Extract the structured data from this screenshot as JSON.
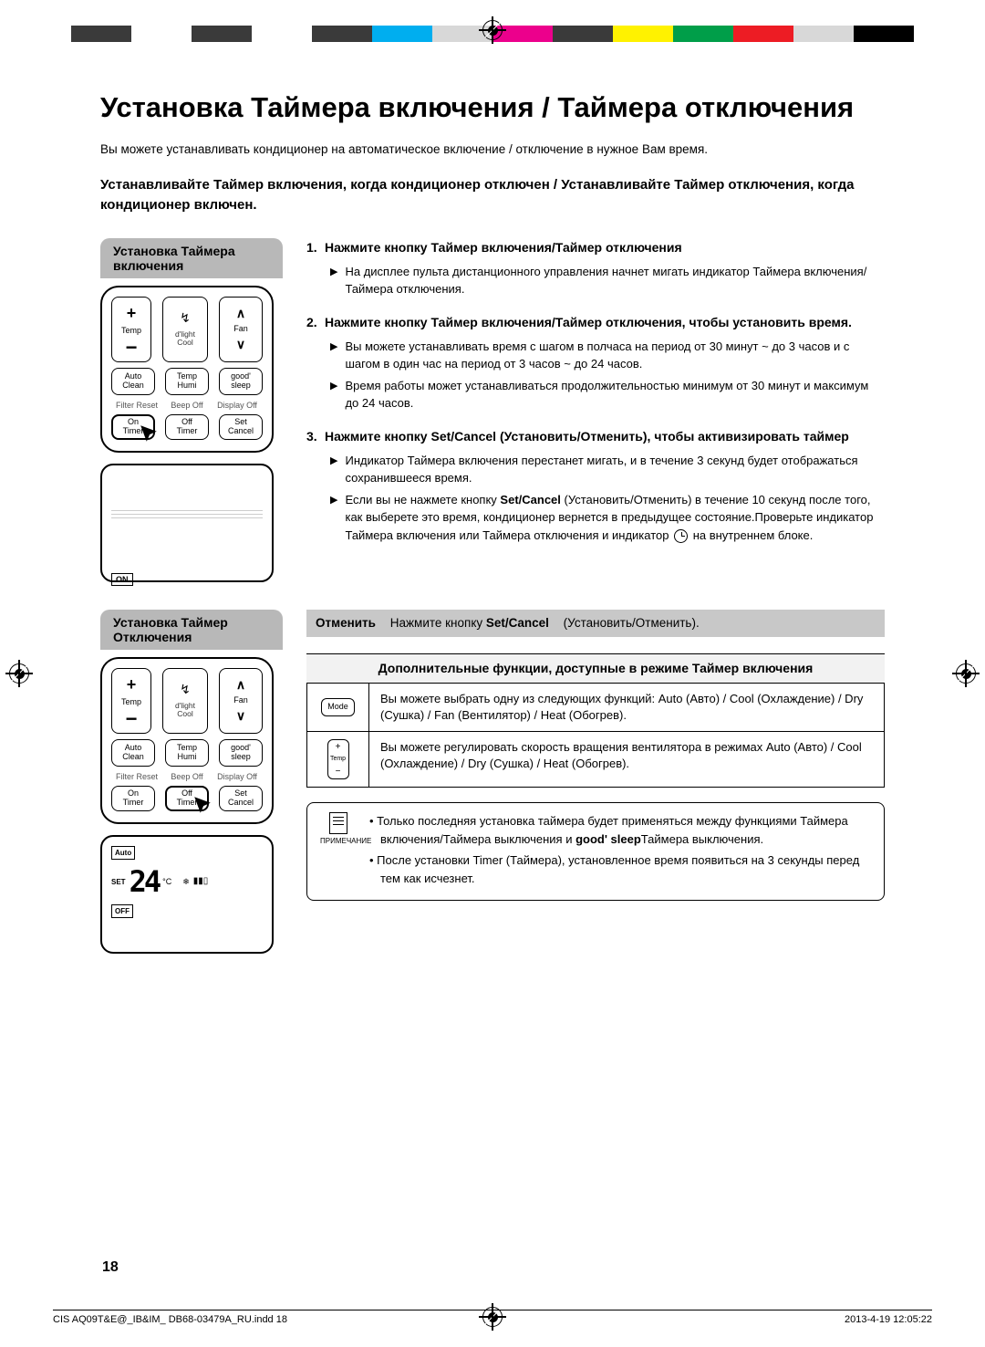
{
  "colorbar": [
    "#3a3a3a",
    "#ffffff",
    "#3a3a3a",
    "#ffffff",
    "#3a3a3a",
    "#00aeef",
    "#d8d8d8",
    "#ec008c",
    "#3a3a3a",
    "#fff200",
    "#009e49",
    "#ed1c24",
    "#d8d8d8",
    "#000000"
  ],
  "title": "Установка Таймера включения / Таймера отключения",
  "intro": "Вы можете устанавливать кондиционер на автоматическое включение / отключение в нужное Вам время.",
  "bold_intro": "Устанавливайте Таймер включения, когда кондиционер отключен / Устанавливайте Таймер отключения, когда кондиционер включен.",
  "section_on_label": "Установка Таймера включения",
  "section_off_label": "Установка Таймер Отключения",
  "remote": {
    "temp_label": "Temp",
    "mode_icon": "⤭",
    "dlight": "d'light",
    "cool": "Cool",
    "fan_label": "Fan",
    "auto_clean1": "Auto",
    "auto_clean2": "Clean",
    "temp_humi1": "Temp",
    "temp_humi2": "Humi",
    "good_sleep1": "good'",
    "good_sleep2": "sleep",
    "filter_reset": "Filter Reset",
    "beep_off": "Beep Off",
    "display_off": "Display Off",
    "on_timer1": "On",
    "on_timer2": "Timer",
    "off_timer1": "Off",
    "off_timer2": "Timer",
    "set_cancel1": "Set",
    "set_cancel2": "Cancel"
  },
  "display1_badge": "ON",
  "display2": {
    "auto": "Auto",
    "set": "SET",
    "temp": "24",
    "unit": "°C",
    "off": "OFF"
  },
  "steps": [
    {
      "num": "1.",
      "title": "Нажмите кнопку Таймер включения/Таймер отключения",
      "bullets": [
        "На дисплее пульта дистанционного управления начнет мигать индикатор Таймера включения/Таймера отключения."
      ]
    },
    {
      "num": "2.",
      "title": "Нажмите кнопку Таймер включения/Таймер отключения, чтобы установить время.",
      "bullets": [
        "Вы можете устанавливать время с шагом в полчаса на период от 30 минут ~ до 3 часов и с шагом в один час на период от 3 часов ~ до 24 часов.",
        "Время работы может устанавливаться продолжительностью минимум от 30 минут и максимум до 24 часов."
      ]
    },
    {
      "num": "3.",
      "title_parts": [
        "Нажмите кнопку ",
        "Set/Cancel",
        " (Установить/Отменить), чтобы активизировать таймер"
      ],
      "bullets": [
        "Индикатор Таймера включения перестанет мигать, и в течение 3 секунд будет отображаться сохранившееся время.",
        "Если вы не нажмете кнопку <b>Set/Cancel</b> (Установить/Отменить) в течение 10 секунд после того, как выберете это время, кондиционер вернется в предыдущее состояние.Проверьте индикатор Таймера включения или Таймера отключения и индикатор <clock/> на внутреннем блоке."
      ]
    }
  ],
  "cancel_label": "Отменить",
  "cancel_text_parts": [
    "Нажмите кнопку ",
    "Set/Cancel",
    " (Установить/Отменить)."
  ],
  "func_header": "Дополнительные функции, доступные в режиме Таймер включения",
  "func_rows": [
    {
      "icon": "Mode",
      "text": "Вы можете выбрать одну из следующих функций: Auto (Авто) / Cool (Охлаждение) / Dry (Сушка) / Fan (Вентилятор) / Heat (Обогрев)."
    },
    {
      "icon": "Temp",
      "text": "Вы можете регулировать скорость вращения вентилятора в режимах Auto (Авто) / Cool (Охлаждение) / Dry (Сушка) / Heat (Обогрев)."
    }
  ],
  "note_label": "ПРИМЕЧАНИЕ",
  "notes": [
    "Только последняя установка таймера будет применяться между функциями Таймера включения/Таймера выключения и <b>good' sleep</b>Таймера выключения.",
    "После установки Timer (Таймера), установленное время появиться на 3 секунды перед тем как исчезнет."
  ],
  "page_num": "18",
  "footer_left": "CIS AQ09T&E@_IB&IM_ DB68-03479A_RU.indd   18",
  "footer_right": "2013-4-19   12:05:22"
}
